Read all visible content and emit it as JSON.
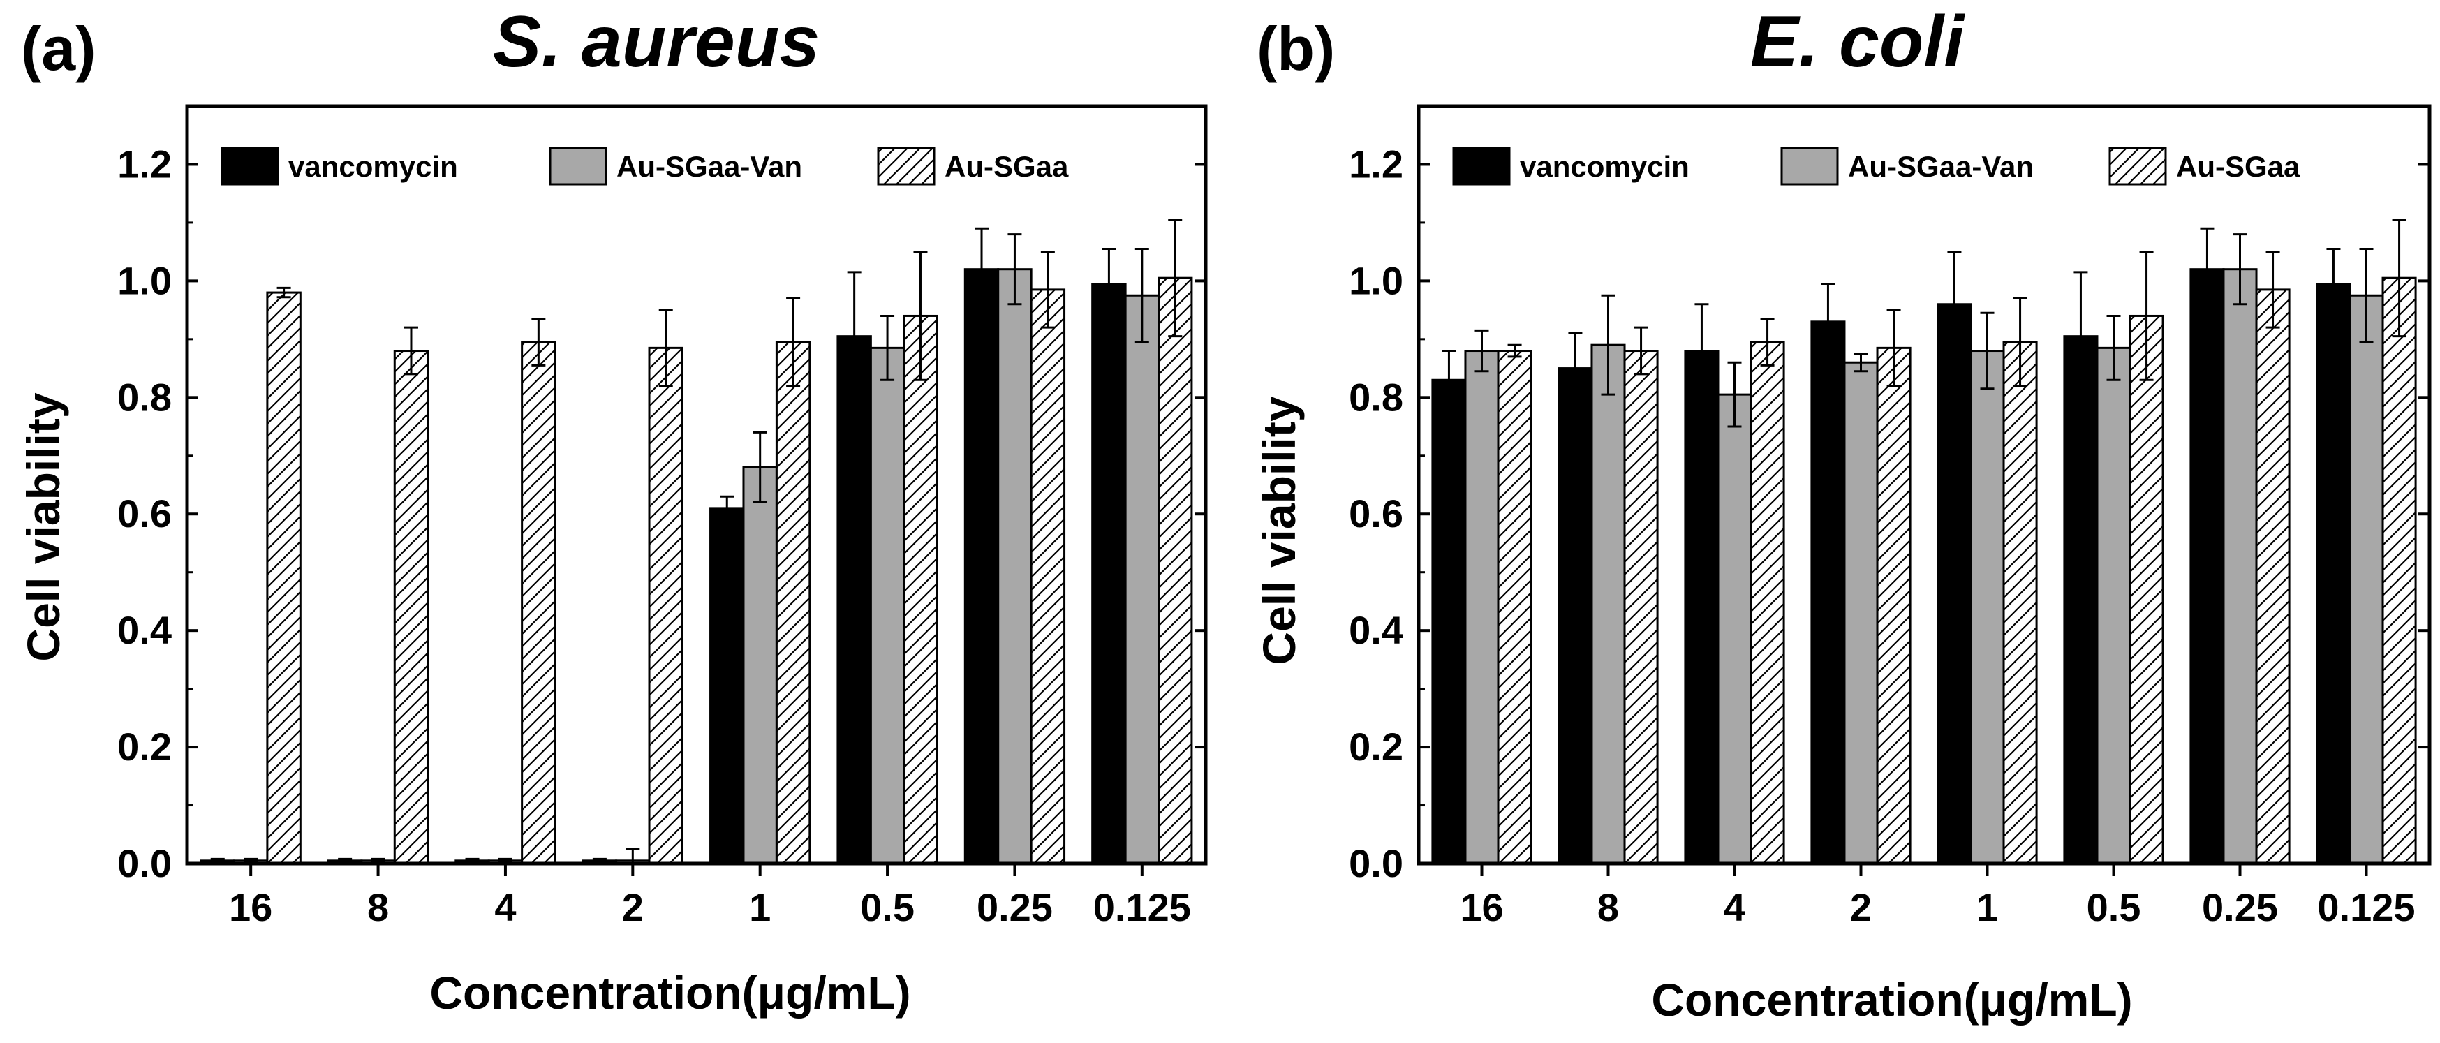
{
  "chart_data": [
    {
      "type": "bar",
      "panel_label": "(a)",
      "title": "S. aureus",
      "xlabel": "Concentration(μg/mL)",
      "ylabel": "Cell viability",
      "ylim": [
        0,
        1.3
      ],
      "yticks": [
        0.0,
        0.2,
        0.4,
        0.6,
        0.8,
        1.0,
        1.2
      ],
      "ytick_labels": [
        "0.0",
        "0.2",
        "0.4",
        "0.6",
        "0.8",
        "1.0",
        "1.2"
      ],
      "categories": [
        "16",
        "8",
        "4",
        "2",
        "1",
        "0.5",
        "0.25",
        "0.125"
      ],
      "legend_position": "top-left",
      "series": [
        {
          "name": "vancomycin",
          "fill": "#000000",
          "pattern": "solid",
          "values": [
            0.005,
            0.005,
            0.005,
            0.005,
            0.61,
            0.905,
            1.02,
            0.995
          ],
          "errors": [
            0.003,
            0.003,
            0.003,
            0.003,
            0.02,
            0.11,
            0.07,
            0.06
          ]
        },
        {
          "name": "Au-SGaa-Van",
          "fill": "#a8a8a8",
          "pattern": "solid",
          "values": [
            0.005,
            0.005,
            0.005,
            0.005,
            0.68,
            0.885,
            1.02,
            0.975
          ],
          "errors": [
            0.003,
            0.003,
            0.003,
            0.02,
            0.06,
            0.055,
            0.06,
            0.08
          ]
        },
        {
          "name": "Au-SGaa",
          "fill": "#ffffff",
          "pattern": "hatch",
          "values": [
            0.98,
            0.88,
            0.895,
            0.885,
            0.895,
            0.94,
            0.985,
            1.005
          ],
          "errors": [
            0.008,
            0.04,
            0.04,
            0.065,
            0.075,
            0.11,
            0.065,
            0.1
          ]
        }
      ]
    },
    {
      "type": "bar",
      "panel_label": "(b)",
      "title": "E. coli",
      "xlabel": "Concentration(μg/mL)",
      "ylabel": "Cell viability",
      "ylim": [
        0,
        1.3
      ],
      "yticks": [
        0.0,
        0.2,
        0.4,
        0.6,
        0.8,
        1.0,
        1.2
      ],
      "ytick_labels": [
        "0.0",
        "0.2",
        "0.4",
        "0.6",
        "0.8",
        "1.0",
        "1.2"
      ],
      "categories": [
        "16",
        "8",
        "4",
        "2",
        "1",
        "0.5",
        "0.25",
        "0.125"
      ],
      "legend_position": "top-left",
      "series": [
        {
          "name": "vancomycin",
          "fill": "#000000",
          "pattern": "solid",
          "values": [
            0.83,
            0.85,
            0.88,
            0.93,
            0.96,
            0.905,
            1.02,
            0.995
          ],
          "errors": [
            0.05,
            0.06,
            0.08,
            0.065,
            0.09,
            0.11,
            0.07,
            0.06
          ]
        },
        {
          "name": "Au-SGaa-Van",
          "fill": "#a8a8a8",
          "pattern": "solid",
          "values": [
            0.88,
            0.89,
            0.805,
            0.86,
            0.88,
            0.885,
            1.02,
            0.975
          ],
          "errors": [
            0.035,
            0.085,
            0.055,
            0.015,
            0.065,
            0.055,
            0.06,
            0.08
          ]
        },
        {
          "name": "Au-SGaa",
          "fill": "#ffffff",
          "pattern": "hatch",
          "values": [
            0.88,
            0.88,
            0.895,
            0.885,
            0.895,
            0.94,
            0.985,
            1.005
          ],
          "errors": [
            0.01,
            0.04,
            0.04,
            0.065,
            0.075,
            0.11,
            0.065,
            0.1
          ]
        }
      ]
    }
  ]
}
